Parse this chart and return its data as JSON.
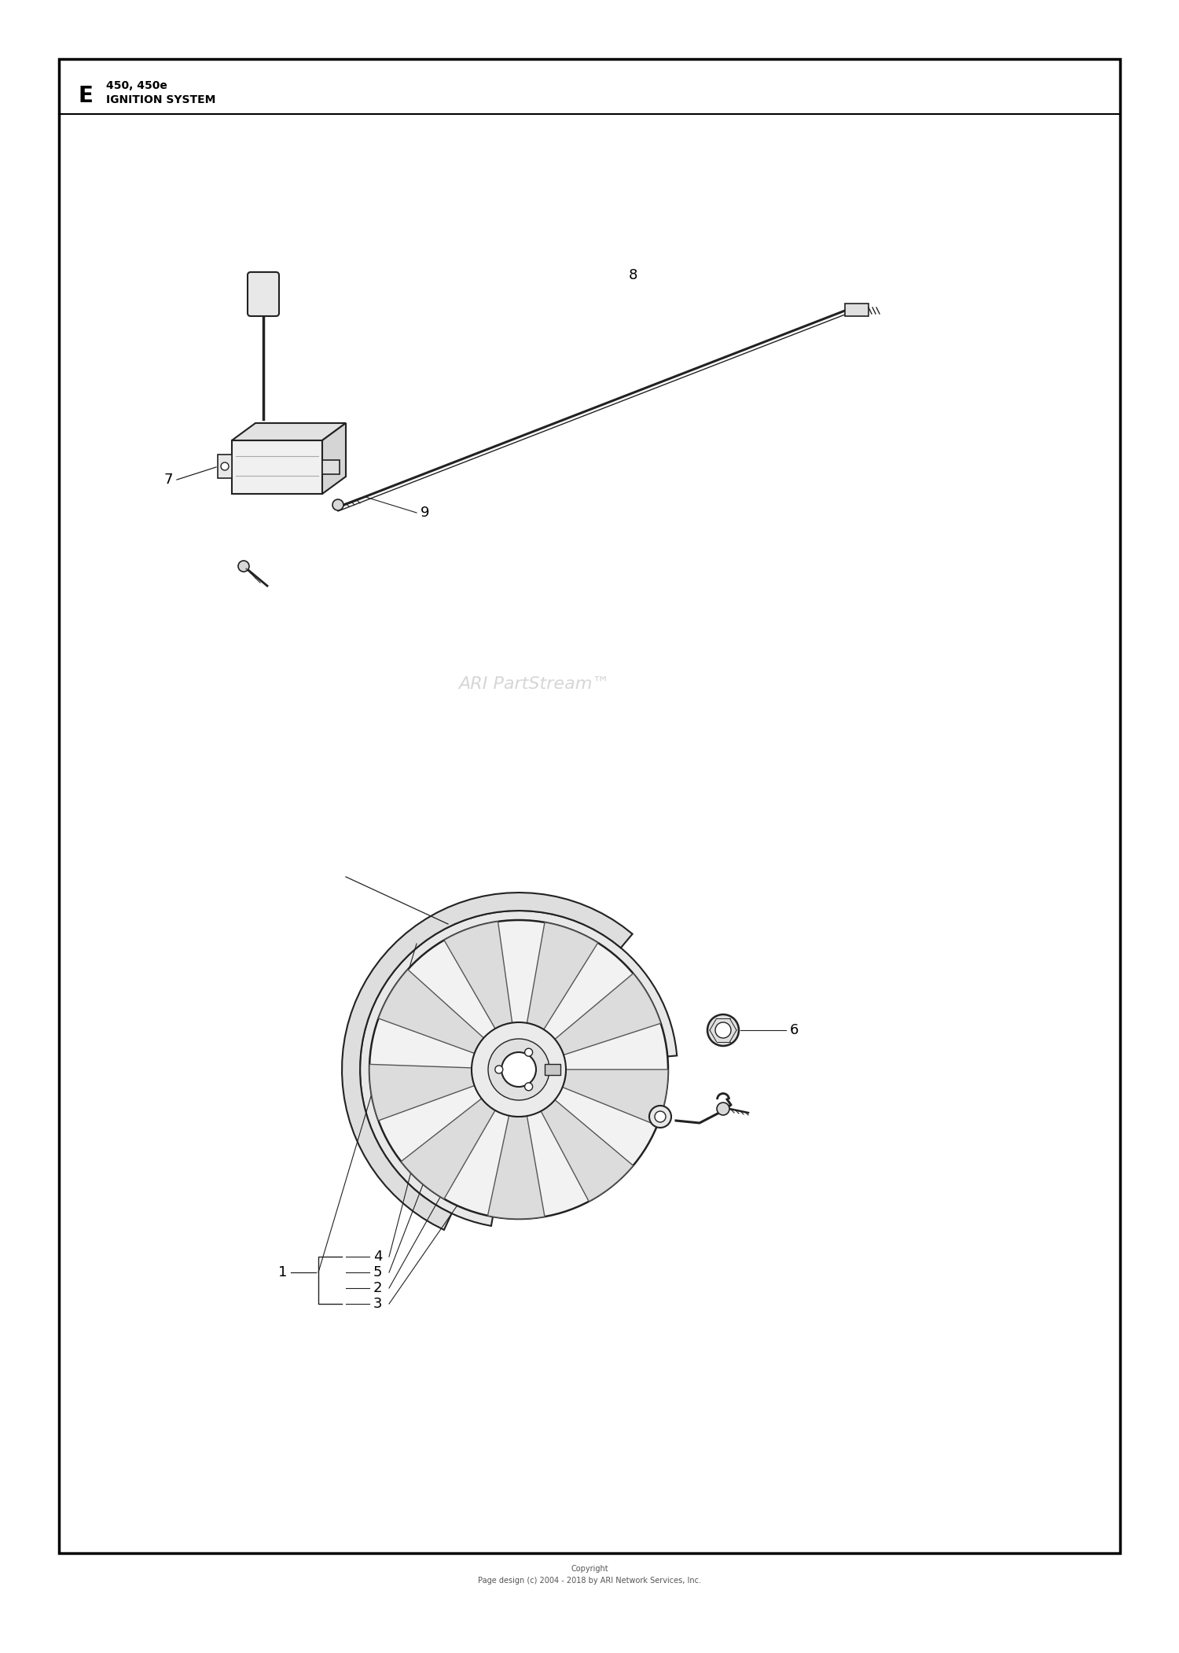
{
  "bg_color": "#ffffff",
  "border_color": "#000000",
  "title_letter": "E",
  "title_line1": "450, 450e",
  "title_line2": "IGNITION SYSTEM",
  "watermark": "ARI PartStream™",
  "copyright_line1": "Copyright",
  "copyright_line2": "Page design (c) 2004 - 2018 by ARI Network Services, Inc.",
  "fig_width": 15.0,
  "fig_height": 21.02
}
